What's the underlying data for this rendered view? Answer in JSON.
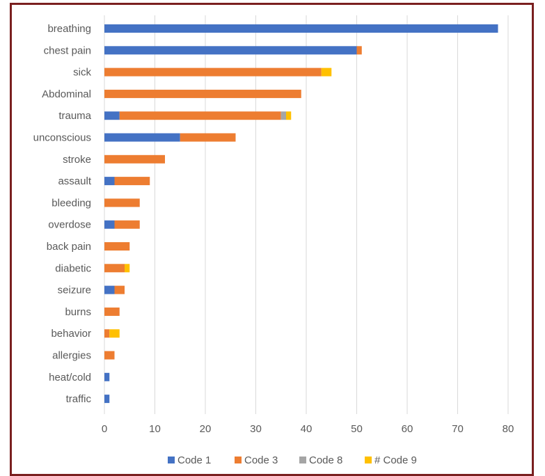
{
  "chart_data": {
    "type": "bar",
    "orientation": "horizontal",
    "stacked": true,
    "categories": [
      "breathing",
      "chest pain",
      "sick",
      "Abdominal",
      "trauma",
      "unconscious",
      "stroke",
      "assault",
      "bleeding",
      "overdose",
      "back pain",
      "diabetic",
      "seizure",
      "burns",
      "behavior",
      "allergies",
      "heat/cold",
      "traffic"
    ],
    "series": [
      {
        "name": "Code 1",
        "color": "#4472c4",
        "values": [
          78,
          50,
          0,
          0,
          3,
          15,
          0,
          2,
          0,
          2,
          0,
          0,
          2,
          0,
          0,
          0,
          1,
          1
        ]
      },
      {
        "name": "Code 3",
        "color": "#ed7d31",
        "values": [
          0,
          1,
          43,
          39,
          32,
          11,
          12,
          7,
          7,
          5,
          5,
          4,
          2,
          3,
          1,
          2,
          0,
          0
        ]
      },
      {
        "name": "Code 8",
        "color": "#a5a5a5",
        "values": [
          0,
          0,
          0,
          0,
          1,
          0,
          0,
          0,
          0,
          0,
          0,
          0,
          0,
          0,
          0,
          0,
          0,
          0
        ]
      },
      {
        "name": "# Code 9",
        "color": "#ffc000",
        "values": [
          0,
          0,
          2,
          0,
          1,
          0,
          0,
          0,
          0,
          0,
          0,
          1,
          0,
          0,
          2,
          0,
          0,
          0
        ]
      }
    ],
    "xlim": [
      0,
      80
    ],
    "xticks": [
      "0",
      "10",
      "20",
      "30",
      "40",
      "50",
      "60",
      "70",
      "80"
    ],
    "grid": "vertical",
    "legend": "bottom"
  }
}
